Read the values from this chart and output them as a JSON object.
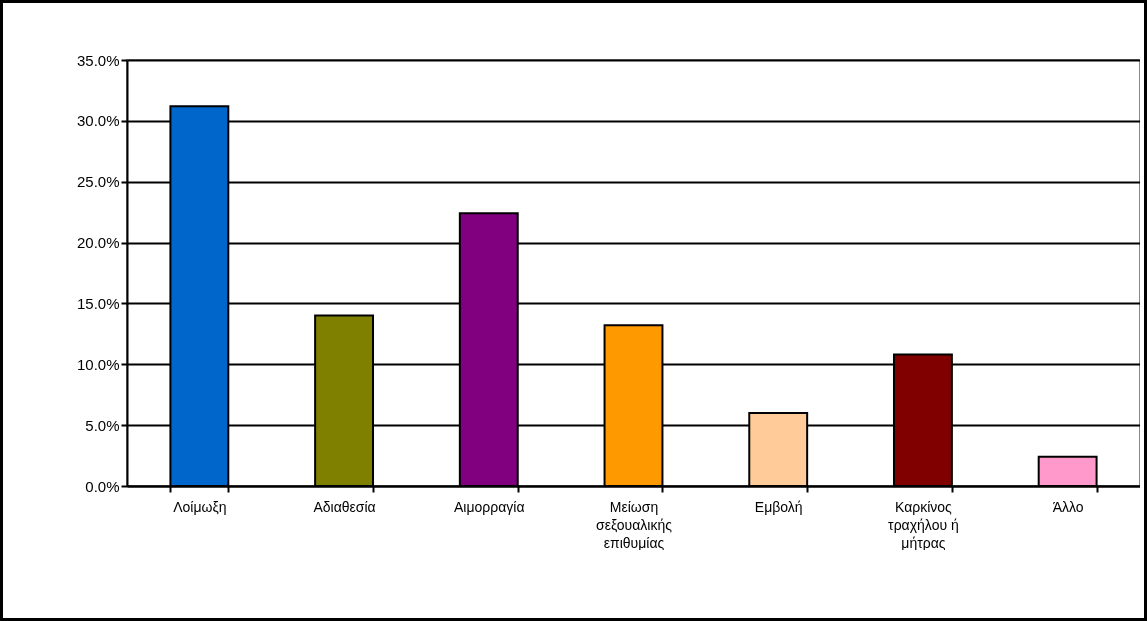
{
  "chart_data": {
    "type": "bar",
    "categories": [
      "Λοίμωξη",
      "Αδιαθεσία",
      "Αιμορραγία",
      "Μείωση σεξουαλικής επιθυμίας",
      "Εμβολή",
      "Καρκίνος τραχήλου ή μήτρας",
      "Άλλο"
    ],
    "values": [
      31.2,
      14.0,
      22.4,
      13.2,
      6.0,
      10.8,
      2.4
    ],
    "colors": [
      "#0066cc",
      "#808000",
      "#800080",
      "#ff9900",
      "#ffcc99",
      "#800000",
      "#ff99cc"
    ],
    "ylim": [
      0,
      35
    ],
    "yticks": [
      {
        "value": 0,
        "label": "0.0%"
      },
      {
        "value": 5,
        "label": "5.0%"
      },
      {
        "value": 10,
        "label": "10.0%"
      },
      {
        "value": 15,
        "label": "15.0%"
      },
      {
        "value": 20,
        "label": "20.0%"
      },
      {
        "value": 25,
        "label": "25.0%"
      },
      {
        "value": 30,
        "label": "30.0%"
      },
      {
        "value": 35,
        "label": "35.0%"
      }
    ],
    "grid": "y",
    "legend": false
  }
}
